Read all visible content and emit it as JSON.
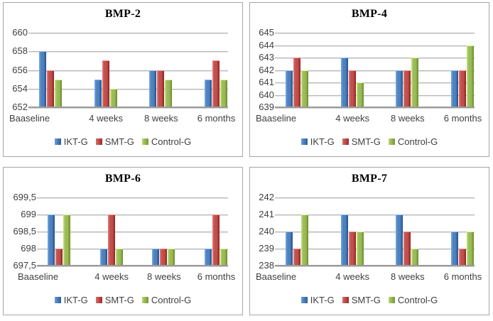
{
  "colors": {
    "ikt_g": "#4F81BD",
    "smt_g": "#C0504D",
    "control_g": "#9BBB59",
    "gridline": "#B7B7B7",
    "axis_line": "#9A9A9A",
    "panel_border": "#A6A6A6",
    "text": "#3F3F3F"
  },
  "chart_data": [
    {
      "type": "bar",
      "title": "BMP-2",
      "categories": [
        "Baaseline",
        "4 weeks",
        "8 weeks",
        "6 months"
      ],
      "series": [
        {
          "name": "IKT-G",
          "color": "#4F81BD",
          "values": [
            658,
            655,
            656,
            655
          ]
        },
        {
          "name": "SMT-G",
          "color": "#C0504D",
          "values": [
            656,
            657,
            656,
            657
          ]
        },
        {
          "name": "Control-G",
          "color": "#9BBB59",
          "values": [
            655,
            654,
            655,
            655
          ]
        }
      ],
      "ylim": [
        652,
        660
      ],
      "yticks": [
        {
          "value": 660,
          "label": "660"
        },
        {
          "value": 658,
          "label": "658"
        },
        {
          "value": 656,
          "label": "656"
        },
        {
          "value": 654,
          "label": "654"
        },
        {
          "value": 652,
          "label": "652"
        }
      ],
      "grid": true,
      "legend_position": "bottom"
    },
    {
      "type": "bar",
      "title": "BMP-4",
      "categories": [
        "Baaseline",
        "4 weeks",
        "8 weeks",
        "6 months"
      ],
      "series": [
        {
          "name": "IKT-G",
          "color": "#4F81BD",
          "values": [
            642,
            643,
            642,
            642
          ]
        },
        {
          "name": "SMT-G",
          "color": "#C0504D",
          "values": [
            643,
            642,
            642,
            642
          ]
        },
        {
          "name": "Control-G",
          "color": "#9BBB59",
          "values": [
            642,
            641,
            643,
            644
          ]
        }
      ],
      "ylim": [
        639,
        645
      ],
      "yticks": [
        {
          "value": 645,
          "label": "645"
        },
        {
          "value": 644,
          "label": "644"
        },
        {
          "value": 643,
          "label": "643"
        },
        {
          "value": 642,
          "label": "642"
        },
        {
          "value": 641,
          "label": "641"
        },
        {
          "value": 640,
          "label": "640"
        },
        {
          "value": 639,
          "label": "639"
        }
      ],
      "grid": true,
      "legend_position": "bottom"
    },
    {
      "type": "bar",
      "title": "BMP-6",
      "categories": [
        "Baaseline",
        "4 weeks",
        "8 weeks",
        "6 months"
      ],
      "series": [
        {
          "name": "IKT-G",
          "color": "#4F81BD",
          "values": [
            699,
            698,
            698,
            698
          ]
        },
        {
          "name": "SMT-G",
          "color": "#C0504D",
          "values": [
            698,
            699,
            698,
            699
          ]
        },
        {
          "name": "Control-G",
          "color": "#9BBB59",
          "values": [
            699,
            698,
            698,
            698
          ]
        }
      ],
      "ylim": [
        697.5,
        699.5
      ],
      "yticks": [
        {
          "value": 699.5,
          "label": "699,5"
        },
        {
          "value": 699,
          "label": "699"
        },
        {
          "value": 698.5,
          "label": "698,5"
        },
        {
          "value": 698,
          "label": "698"
        },
        {
          "value": 697.5,
          "label": "697,5"
        }
      ],
      "grid": true,
      "legend_position": "bottom"
    },
    {
      "type": "bar",
      "title": "BMP-7",
      "categories": [
        "Baaseline",
        "4 weeks",
        "8 weeks",
        "6 months"
      ],
      "series": [
        {
          "name": "IKT-G",
          "color": "#4F81BD",
          "values": [
            240,
            241,
            241,
            240
          ]
        },
        {
          "name": "SMT-G",
          "color": "#C0504D",
          "values": [
            239,
            240,
            240,
            239
          ]
        },
        {
          "name": "Control-G",
          "color": "#9BBB59",
          "values": [
            241,
            240,
            239,
            240
          ]
        }
      ],
      "ylim": [
        238,
        242
      ],
      "yticks": [
        {
          "value": 242,
          "label": "242"
        },
        {
          "value": 241,
          "label": "241"
        },
        {
          "value": 240,
          "label": "240"
        },
        {
          "value": 239,
          "label": "239"
        },
        {
          "value": 238,
          "label": "238"
        }
      ],
      "grid": true,
      "legend_position": "bottom"
    }
  ]
}
